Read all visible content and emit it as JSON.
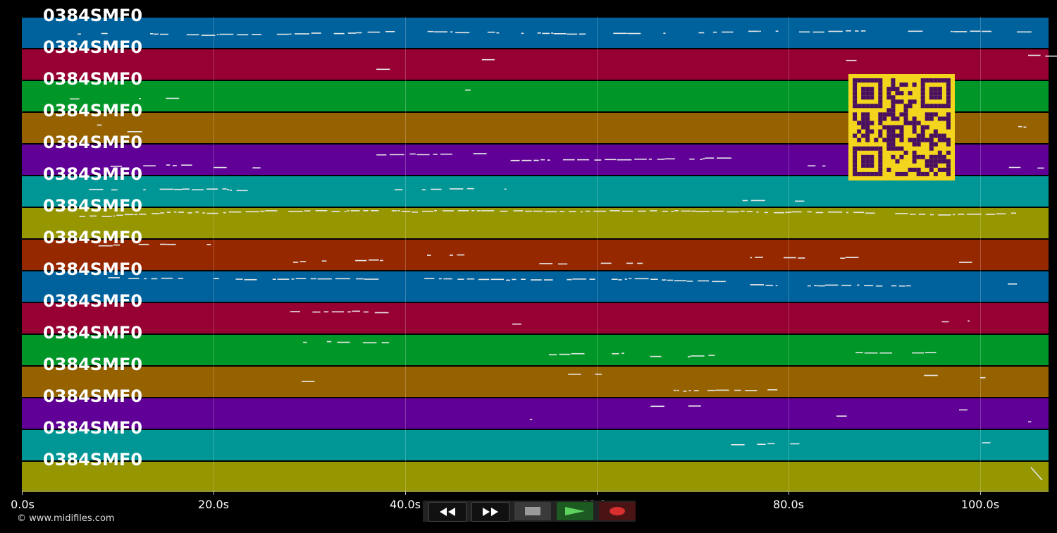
{
  "tracks": [
    {
      "label": "0384SMF0",
      "color": "#00629c"
    },
    {
      "label": "0384SMF0",
      "color": "#970032"
    },
    {
      "label": "0384SMF0",
      "color": "#009628"
    },
    {
      "label": "0384SMF0",
      "color": "#966200"
    },
    {
      "label": "0384SMF0",
      "color": "#600096"
    },
    {
      "label": "0384SMF0",
      "color": "#009696"
    },
    {
      "label": "0384SMF0",
      "color": "#969600"
    },
    {
      "label": "0384SMF0",
      "color": "#962800"
    },
    {
      "label": "0384SMF0",
      "color": "#00629c"
    },
    {
      "label": "0384SMF0",
      "color": "#970032"
    },
    {
      "label": "0384SMF0",
      "color": "#009628"
    },
    {
      "label": "0384SMF0",
      "color": "#966200"
    },
    {
      "label": "0384SMF0",
      "color": "#600096"
    },
    {
      "label": "0384SMF0",
      "color": "#009696"
    },
    {
      "label": "0384SMF0",
      "color": "#969600"
    }
  ],
  "time_axis": {
    "ticks": [
      "0.0s",
      "20.0s",
      "40.0s",
      "60.0s",
      "80.0s",
      "100.0s"
    ]
  },
  "copyright": "© www.midifiles.com",
  "controls": {
    "rewind": "rewind-icon",
    "fast_forward": "fast-forward-icon",
    "stop": "stop-icon",
    "play": "play-icon",
    "record": "record-icon"
  },
  "colors": {
    "background": "#000000",
    "note": "#e8e8e8",
    "qr_background": "#f3d51d",
    "qr_foreground": "#4a1060"
  }
}
